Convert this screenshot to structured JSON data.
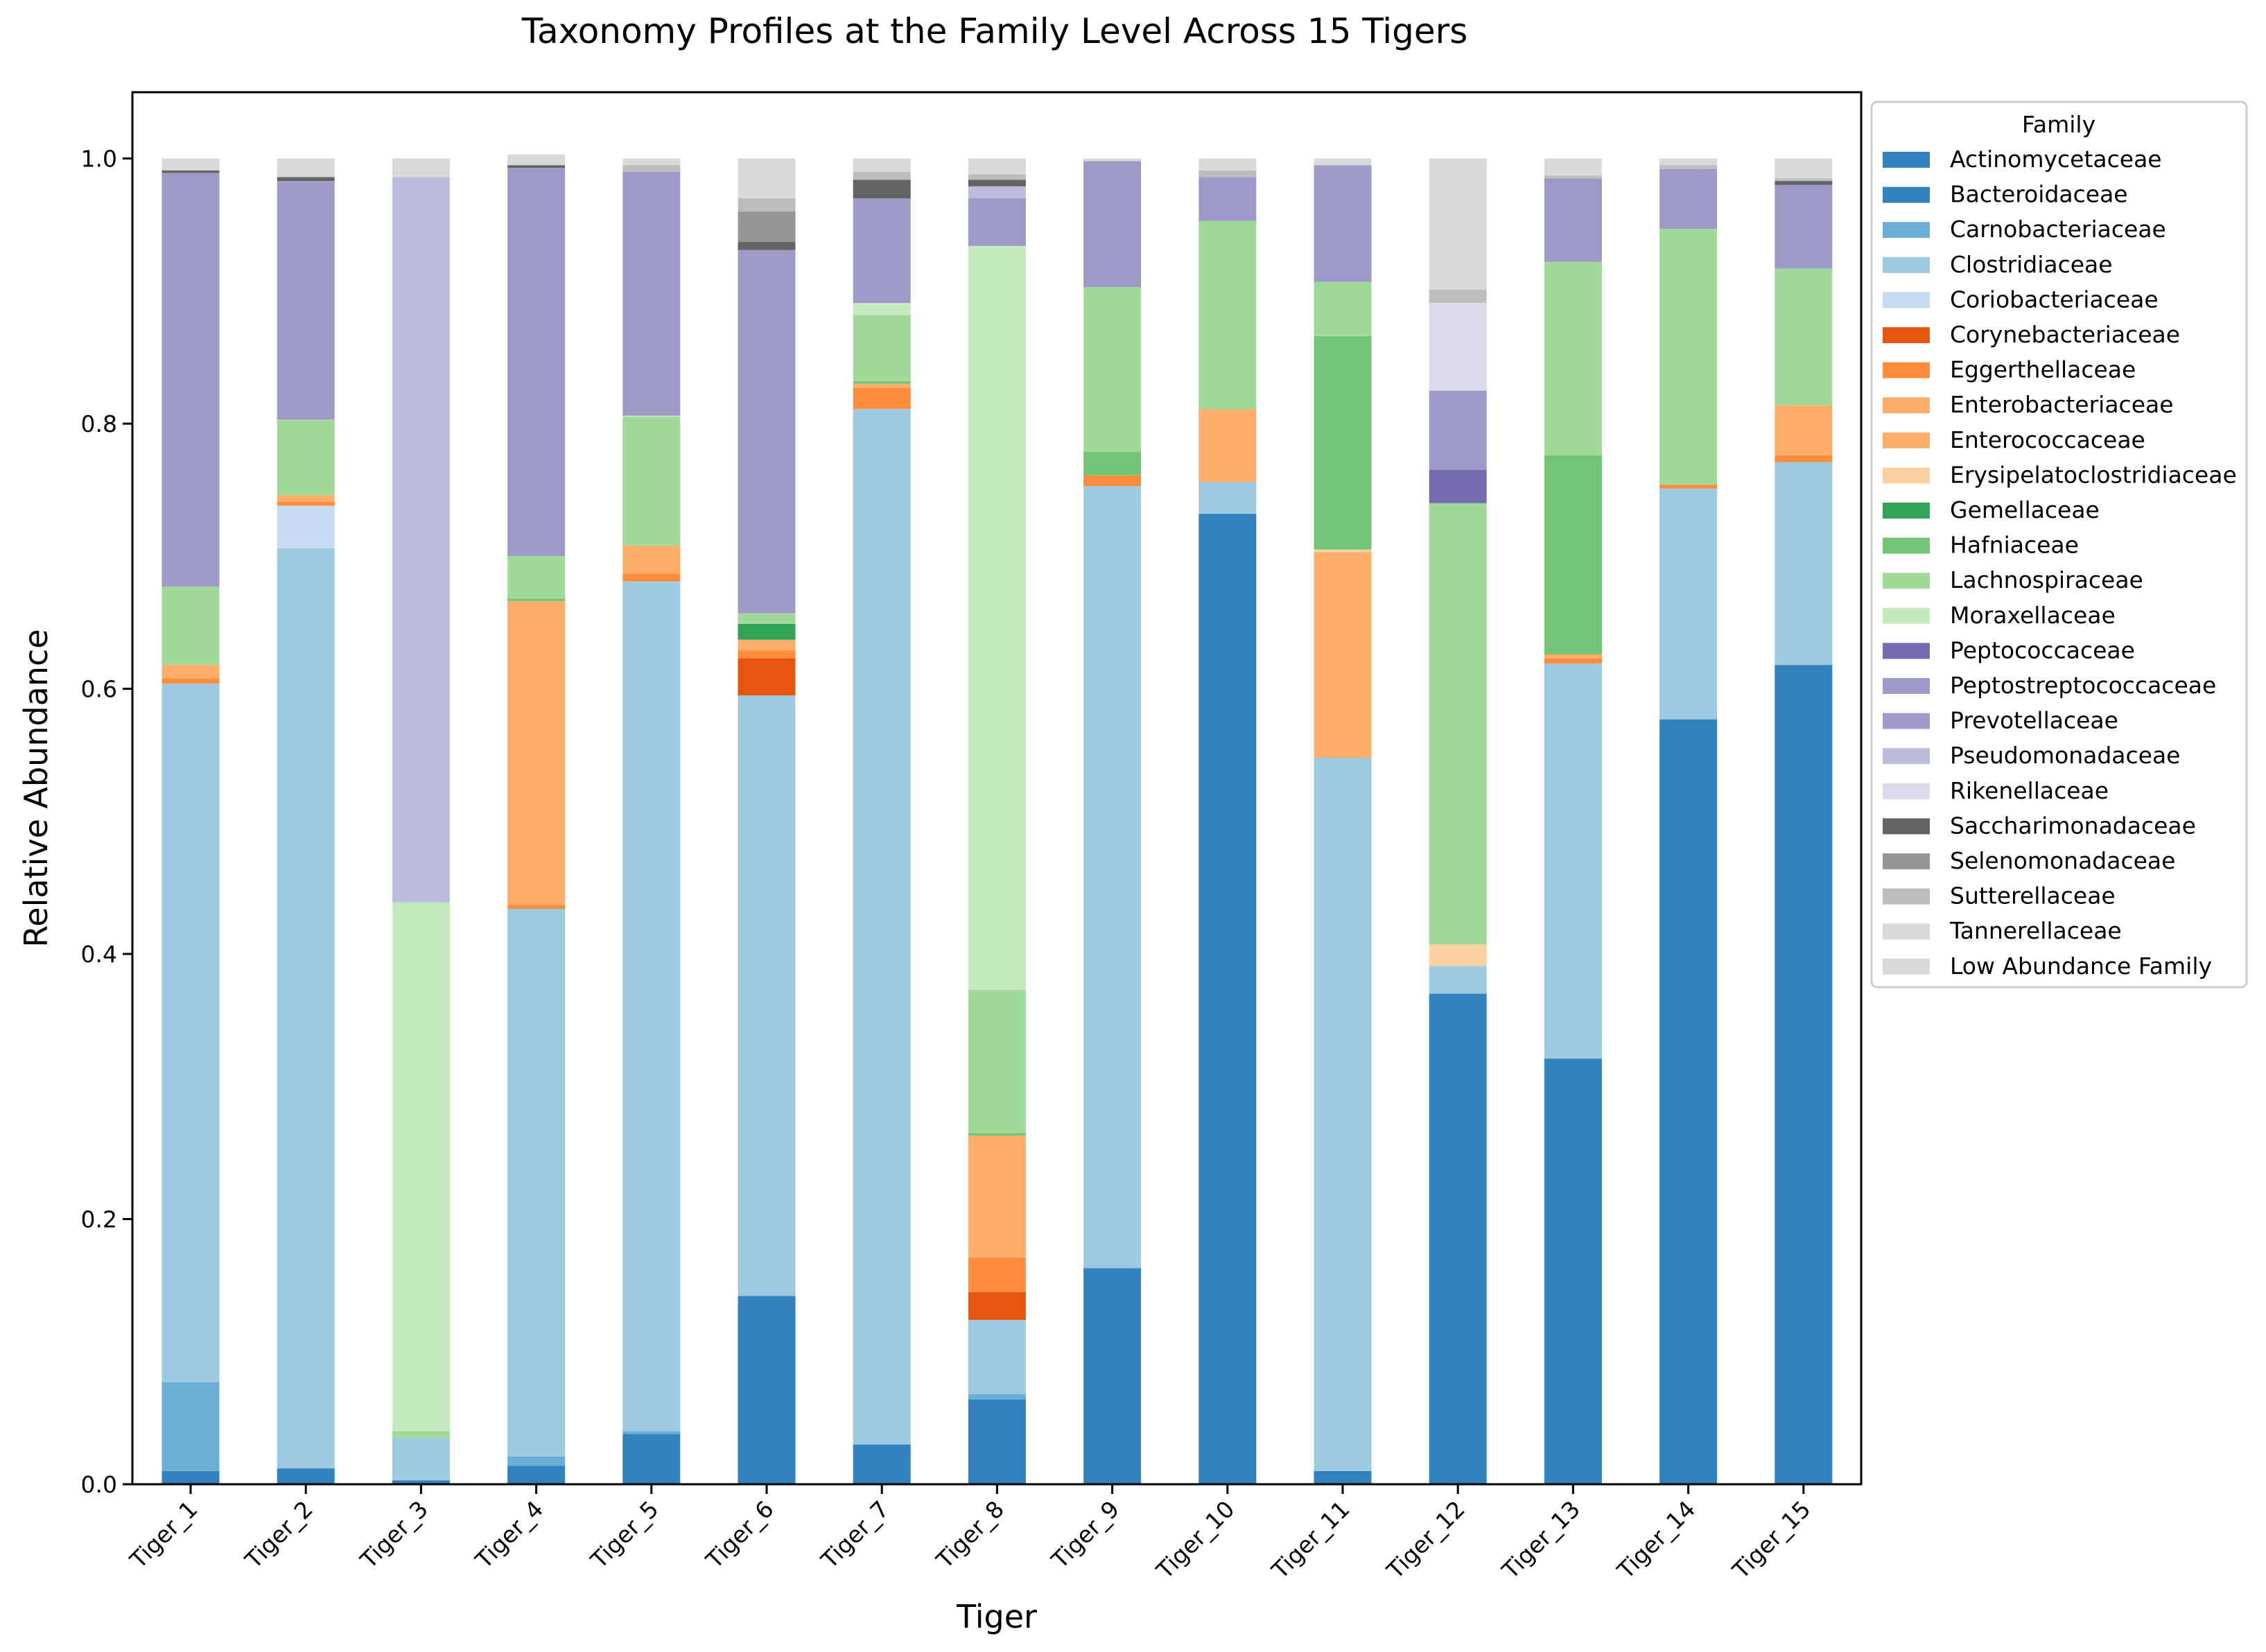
{
  "chart_data": {
    "type": "bar",
    "stacked": true,
    "title": "Taxonomy Profiles at the Family Level Across 15 Tigers",
    "xlabel": "Tiger",
    "ylabel": "Relative Abundance",
    "ylim": [
      0,
      1.05
    ],
    "yticks": [
      0.0,
      0.2,
      0.4,
      0.6,
      0.8,
      1.0
    ],
    "ytick_labels": [
      "0.0",
      "0.2",
      "0.4",
      "0.6",
      "0.8",
      "1.0"
    ],
    "grid": false,
    "legend": {
      "title": "Family",
      "position": "right, outside plot (top)"
    },
    "categories": [
      "Tiger_1",
      "Tiger_2",
      "Tiger_3",
      "Tiger_4",
      "Tiger_5",
      "Tiger_6",
      "Tiger_7",
      "Tiger_8",
      "Tiger_9",
      "Tiger_10",
      "Tiger_11",
      "Tiger_12",
      "Tiger_13",
      "Tiger_14",
      "Tiger_15"
    ],
    "series": [
      {
        "name": "Actinomycetaceae",
        "color": "#3182bd",
        "values": [
          0.01,
          0.012,
          0.003,
          0.014,
          0.038,
          0.142,
          0.03,
          0.064,
          0.163,
          0.732,
          0.01,
          0.37,
          0.321,
          0.577,
          0.618
        ]
      },
      {
        "name": "Bacteroidaceae",
        "color": "#3182bd",
        "values": [
          0,
          0,
          0,
          0,
          0,
          0,
          0,
          0,
          0,
          0,
          0,
          0,
          0,
          0,
          0
        ]
      },
      {
        "name": "Carnobacteriaceae",
        "color": "#6baed6",
        "values": [
          0.067,
          0,
          0,
          0.007,
          0.002,
          0,
          0,
          0.004,
          0,
          0,
          0,
          0,
          0,
          0,
          0
        ]
      },
      {
        "name": "Clostridiaceae",
        "color": "#9ecae1",
        "values": [
          0.527,
          0.694,
          0.032,
          0.413,
          0.641,
          0.453,
          0.781,
          0.056,
          0.59,
          0.024,
          0.538,
          0.021,
          0.298,
          0.174,
          0.153
        ]
      },
      {
        "name": "Coriobacteriaceae",
        "color": "#c6dbef",
        "values": [
          0,
          0.032,
          0,
          0,
          0,
          0,
          0,
          0,
          0,
          0,
          0,
          0,
          0,
          0,
          0
        ]
      },
      {
        "name": "Corynebacteriaceae",
        "color": "#e6550d",
        "values": [
          0,
          0,
          0,
          0,
          0,
          0.028,
          0,
          0.021,
          0,
          0,
          0,
          0,
          0,
          0,
          0
        ]
      },
      {
        "name": "Eggerthellaceae",
        "color": "#fd8d3c",
        "values": [
          0.004,
          0.003,
          0,
          0.003,
          0.006,
          0.006,
          0.016,
          0.026,
          0.008,
          0,
          0,
          0,
          0.004,
          0.003,
          0.005
        ]
      },
      {
        "name": "Enterobacteriaceae",
        "color": "#fdae6b",
        "values": [
          0.01,
          0.005,
          0,
          0.229,
          0.021,
          0.008,
          0.003,
          0.092,
          0,
          0.055,
          0.155,
          0,
          0.003,
          0,
          0.038
        ]
      },
      {
        "name": "Enterococcaceae",
        "color": "#fdae6b",
        "values": [
          0,
          0,
          0,
          0,
          0,
          0,
          0,
          0,
          0,
          0,
          0,
          0,
          0,
          0,
          0
        ]
      },
      {
        "name": "Erysipelatoclostridiaceae",
        "color": "#fdd0a2",
        "values": [
          0,
          0,
          0,
          0,
          0,
          0,
          0,
          0,
          0,
          0,
          0.002,
          0.016,
          0,
          0,
          0
        ]
      },
      {
        "name": "Gemellaceae",
        "color": "#31a354",
        "values": [
          0,
          0,
          0,
          0,
          0,
          0.012,
          0,
          0,
          0,
          0,
          0,
          0,
          0,
          0,
          0
        ]
      },
      {
        "name": "Hafniaceae",
        "color": "#74c476",
        "values": [
          0,
          0,
          0,
          0.002,
          0,
          0,
          0.002,
          0.002,
          0.018,
          0,
          0.161,
          0,
          0.15,
          0,
          0
        ]
      },
      {
        "name": "Lachnospiraceae",
        "color": "#a1d99b",
        "values": [
          0.059,
          0.057,
          0.005,
          0.032,
          0.097,
          0.008,
          0.05,
          0.108,
          0.124,
          0.142,
          0.041,
          0.333,
          0.146,
          0.193,
          0.103
        ]
      },
      {
        "name": "Moraxellaceae",
        "color": "#c7e9c0",
        "values": [
          0,
          0,
          0.399,
          0,
          0.001,
          0,
          0.009,
          0.561,
          0,
          0,
          0,
          0,
          0,
          0,
          0
        ]
      },
      {
        "name": "Peptococcaceae",
        "color": "#756bb1",
        "values": [
          0,
          0,
          0,
          0,
          0,
          0,
          0,
          0,
          0,
          0,
          0,
          0.025,
          0,
          0,
          0
        ]
      },
      {
        "name": "Peptostreptococcaceae",
        "color": "#9e9ac8",
        "values": [
          0,
          0,
          0,
          0,
          0,
          0,
          0,
          0,
          0,
          0,
          0,
          0,
          0,
          0,
          0
        ]
      },
      {
        "name": "Prevotellaceae",
        "color": "#9e9ac8",
        "values": [
          0.312,
          0.18,
          0,
          0.293,
          0.184,
          0.274,
          0.079,
          0.036,
          0.095,
          0.033,
          0.088,
          0.06,
          0.063,
          0.045,
          0.063
        ]
      },
      {
        "name": "Pseudomonadaceae",
        "color": "#bcbddc",
        "values": [
          0,
          0,
          0.547,
          0,
          0,
          0,
          0,
          0.009,
          0,
          0,
          0,
          0,
          0,
          0,
          0
        ]
      },
      {
        "name": "Rikenellaceae",
        "color": "#dadaeb",
        "values": [
          0,
          0,
          0,
          0,
          0,
          0,
          0,
          0,
          0,
          0,
          0,
          0.066,
          0,
          0,
          0
        ]
      },
      {
        "name": "Saccharimonadaceae",
        "color": "#636363",
        "values": [
          0.002,
          0.003,
          0,
          0.002,
          0,
          0.006,
          0.014,
          0.005,
          0,
          0,
          0,
          0,
          0,
          0,
          0.003
        ]
      },
      {
        "name": "Selenomonadaceae",
        "color": "#969696",
        "values": [
          0,
          0,
          0,
          0,
          0,
          0.023,
          0,
          0,
          0,
          0,
          0,
          0,
          0,
          0,
          0
        ]
      },
      {
        "name": "Sutterellaceae",
        "color": "#bdbdbd",
        "values": [
          0,
          0,
          0,
          0,
          0.005,
          0.01,
          0.006,
          0.004,
          0,
          0.005,
          0,
          0.01,
          0.002,
          0.003,
          0.002
        ]
      },
      {
        "name": "Tannerellaceae",
        "color": "#d9d9d9",
        "values": [
          0,
          0,
          0,
          0,
          0,
          0,
          0,
          0,
          0,
          0,
          0,
          0,
          0,
          0,
          0
        ]
      },
      {
        "name": "Low Abundance Family",
        "color": "#d9d9d9",
        "values": [
          0.009,
          0.014,
          0.014,
          0.008,
          0.005,
          0.03,
          0.01,
          0.012,
          0.002,
          0.009,
          0.005,
          0.099,
          0.013,
          0.005,
          0.015
        ]
      }
    ]
  }
}
